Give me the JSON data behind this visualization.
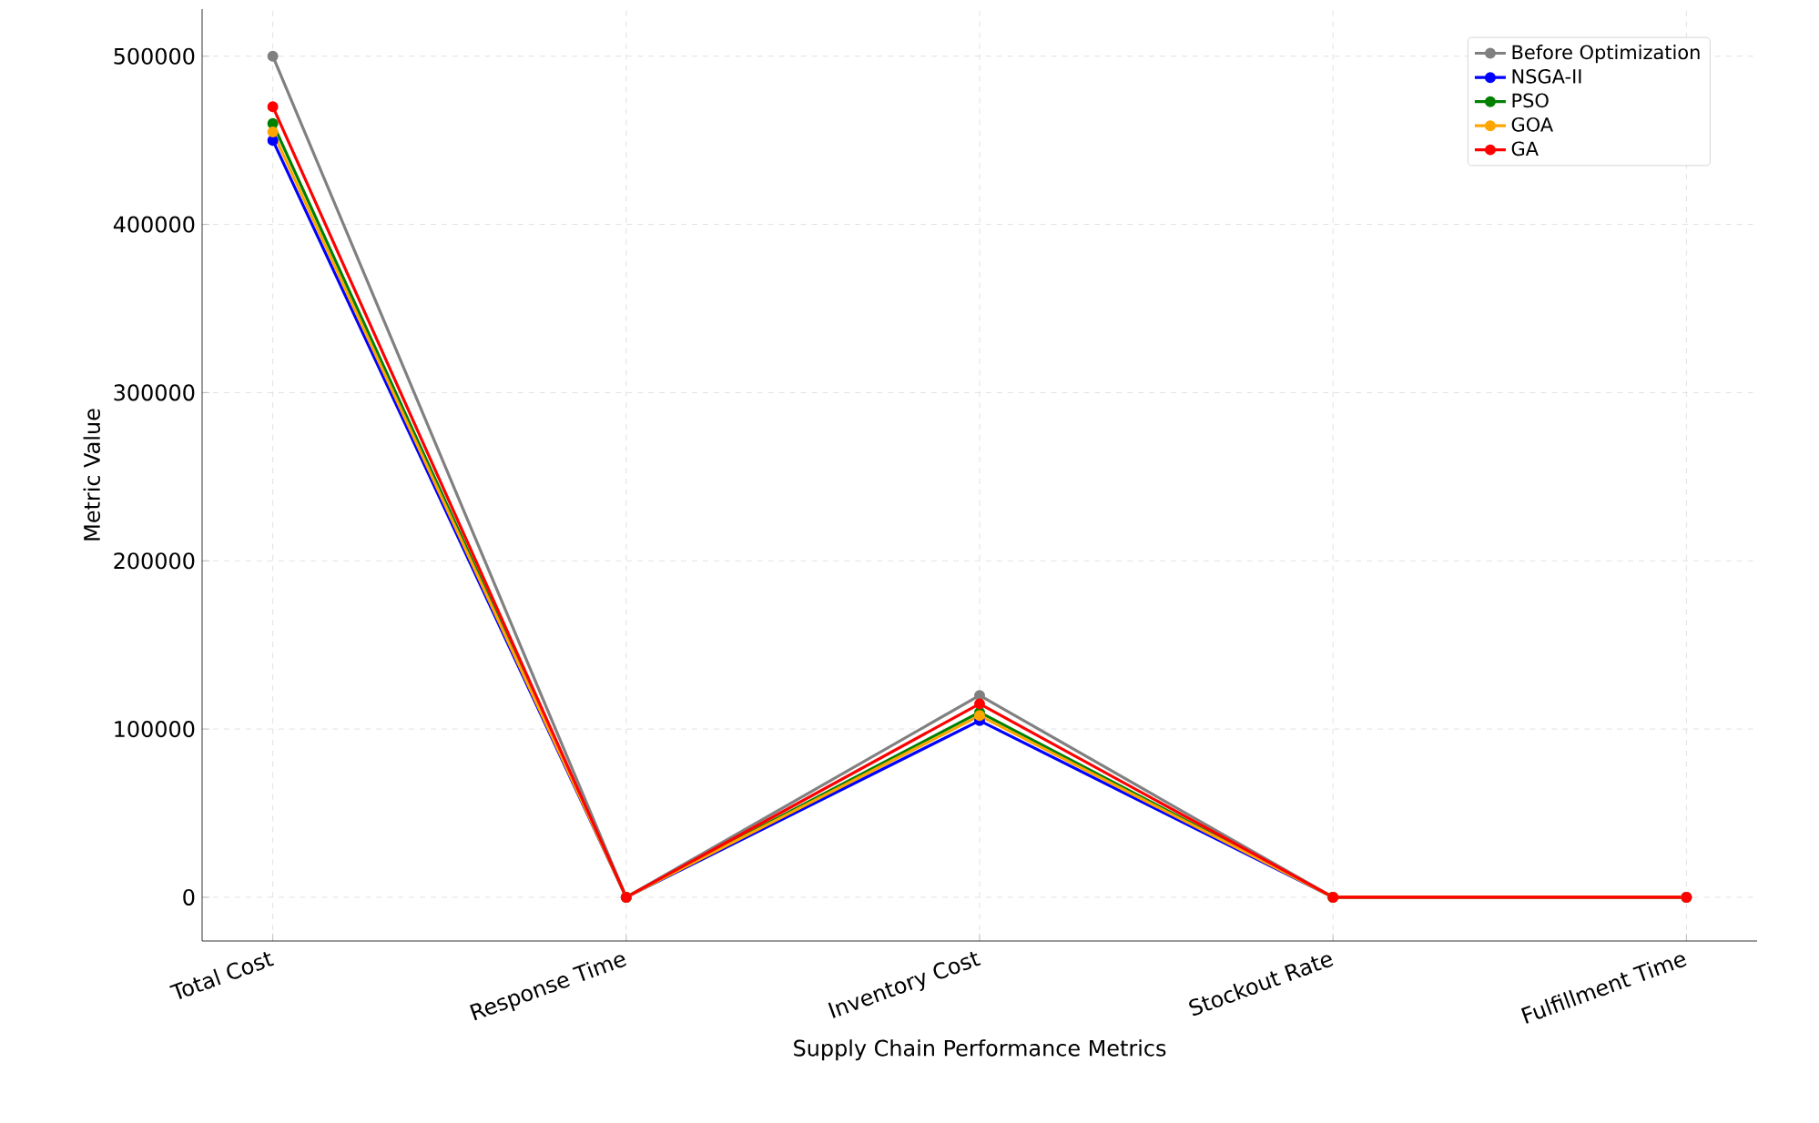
{
  "chart_data": {
    "type": "line",
    "xlabel": "Supply Chain Performance Metrics",
    "ylabel": "Metric Value",
    "categories": [
      "Total Cost",
      "Response Time",
      "Inventory Cost",
      "Stockout Rate",
      "Fulfillment Time"
    ],
    "series": [
      {
        "name": "Before Optimization",
        "color": "#808080",
        "values": [
          500000,
          0,
          120000,
          0,
          0
        ]
      },
      {
        "name": "NSGA-II",
        "color": "#0000ff",
        "values": [
          450000,
          0,
          105000,
          0,
          0
        ]
      },
      {
        "name": "PSO",
        "color": "#008000",
        "values": [
          460000,
          0,
          110000,
          0,
          0
        ]
      },
      {
        "name": "GOA",
        "color": "#ffa500",
        "values": [
          455000,
          0,
          108000,
          0,
          0
        ]
      },
      {
        "name": "GA",
        "color": "#ff0000",
        "values": [
          470000,
          0,
          115000,
          0,
          0
        ]
      }
    ],
    "ylim": [
      -26000,
      528000
    ],
    "yticks": [
      0,
      100000,
      200000,
      300000,
      400000,
      500000
    ],
    "grid": true,
    "legend": "top right",
    "marker": "circle",
    "line_style": "solid"
  }
}
